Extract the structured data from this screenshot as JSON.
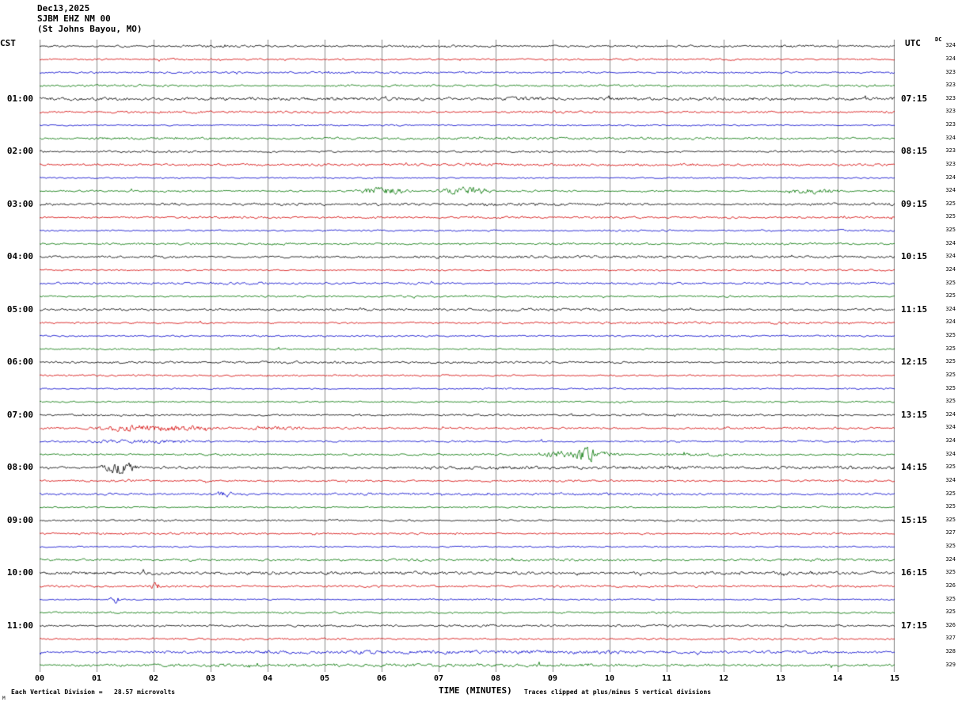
{
  "header": {
    "date": "Dec13,2025",
    "station": "SJBM EHZ NM 00",
    "location": "(St Johns Bayou, MO)"
  },
  "footer": {
    "left": "Each Vertical Division =   28.57 microvolts",
    "center": "TIME (MINUTES)",
    "right": "Traces clipped at plus/minus 5 vertical divisions",
    "corner": "M"
  },
  "chart_data": {
    "type": "line",
    "kind": "helicorder-seismogram",
    "title": "Dec13,2025 SJBM EHZ NM 00 (St Johns Bayou, MO)",
    "xlabel": "TIME (MINUTES)",
    "x_ticks": [
      "00",
      "01",
      "02",
      "03",
      "04",
      "05",
      "06",
      "07",
      "08",
      "09",
      "10",
      "11",
      "12",
      "13",
      "14",
      "15"
    ],
    "x_range_minutes": [
      0,
      15
    ],
    "rows": 48,
    "minutes_per_row": 15,
    "row_start_cst": "00:00",
    "grid": "vertical-lines-every-minute",
    "grid_color": "#8c8c8c",
    "trace_color_cycle": [
      "#000000",
      "#d40000",
      "#0000cc",
      "#007300"
    ],
    "noise_amp_by_color": [
      2.1,
      1.5,
      1.4,
      1.5
    ],
    "clip_text": "plus/minus 5 vertical divisions",
    "left_axis": {
      "label": "CST",
      "ticks": [
        {
          "row": 4,
          "label": "01:00"
        },
        {
          "row": 8,
          "label": "02:00"
        },
        {
          "row": 12,
          "label": "03:00"
        },
        {
          "row": 16,
          "label": "04:00"
        },
        {
          "row": 20,
          "label": "05:00"
        },
        {
          "row": 24,
          "label": "06:00"
        },
        {
          "row": 28,
          "label": "07:00"
        },
        {
          "row": 32,
          "label": "08:00"
        },
        {
          "row": 36,
          "label": "09:00"
        },
        {
          "row": 40,
          "label": "10:00"
        },
        {
          "row": 44,
          "label": "11:00"
        }
      ]
    },
    "right_axis": {
      "label": "UTC",
      "ticks": [
        {
          "row": 4,
          "label": "07:15"
        },
        {
          "row": 8,
          "label": "08:15"
        },
        {
          "row": 12,
          "label": "09:15"
        },
        {
          "row": 16,
          "label": "10:15"
        },
        {
          "row": 20,
          "label": "11:15"
        },
        {
          "row": 24,
          "label": "12:15"
        },
        {
          "row": 28,
          "label": "13:15"
        },
        {
          "row": 32,
          "label": "14:15"
        },
        {
          "row": 36,
          "label": "15:15"
        },
        {
          "row": 40,
          "label": "16:15"
        },
        {
          "row": 44,
          "label": "17:15"
        }
      ]
    },
    "dc_header": "DC",
    "dc_values": [
      324,
      324,
      323,
      323,
      323,
      323,
      323,
      324,
      323,
      323,
      324,
      324,
      325,
      325,
      325,
      324,
      324,
      324,
      325,
      325,
      324,
      324,
      325,
      325,
      325,
      325,
      325,
      325,
      324,
      324,
      324,
      324,
      325,
      324,
      325,
      325,
      325,
      327,
      325,
      324,
      325,
      326,
      325,
      325,
      326,
      327,
      328,
      329
    ],
    "events": [
      {
        "row": 11,
        "start_min": 5.5,
        "end_min": 6.6,
        "amp": 5
      },
      {
        "row": 11,
        "start_min": 6.9,
        "end_min": 8.0,
        "amp": 6
      },
      {
        "row": 11,
        "start_min": 13.0,
        "end_min": 14.1,
        "amp": 4
      },
      {
        "row": 29,
        "start_min": 0.7,
        "end_min": 3.3,
        "amp": 4
      },
      {
        "row": 29,
        "start_min": 3.3,
        "end_min": 5.0,
        "amp": 1.5
      },
      {
        "row": 30,
        "start_min": 0.7,
        "end_min": 3.0,
        "amp": 1.5
      },
      {
        "row": 31,
        "start_min": 8.6,
        "end_min": 10.3,
        "amp": 5
      },
      {
        "row": 31,
        "start_min": 9.4,
        "end_min": 9.8,
        "amp": 7
      },
      {
        "row": 31,
        "start_min": 10.8,
        "end_min": 12.3,
        "amp": 2
      },
      {
        "row": 32,
        "start_min": 1.0,
        "end_min": 1.8,
        "amp": 9
      },
      {
        "row": 34,
        "start_min": 3.1,
        "end_min": 3.4,
        "amp": 5
      },
      {
        "row": 41,
        "start_min": 1.9,
        "end_min": 2.15,
        "amp": 5
      },
      {
        "row": 42,
        "start_min": 1.2,
        "end_min": 1.45,
        "amp": 6
      },
      {
        "row": 46,
        "start_min": 0.0,
        "end_min": 15.0,
        "amp": 1.6
      },
      {
        "row": 47,
        "start_min": 0.0,
        "end_min": 15.0,
        "amp": 0.8
      }
    ]
  }
}
